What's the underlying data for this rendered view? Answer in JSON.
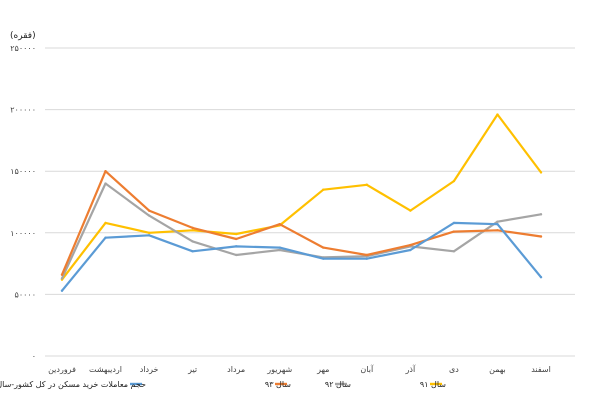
{
  "chart_data": {
    "type": "line",
    "unit_label": "(فقره)",
    "categories": [
      "فروردین",
      "اردیبهشت",
      "خرداد",
      "تیر",
      "مرداد",
      "شهریور",
      "مهر",
      "آبان",
      "آذر",
      "دی",
      "بهمن",
      "اسفند"
    ],
    "y_ticks": [
      0,
      50000,
      100000,
      150000,
      200000,
      250000
    ],
    "y_tick_labels": [
      "۰",
      "۵۰۰۰۰",
      "۱۰۰۰۰۰",
      "۱۵۰۰۰۰",
      "۲۰۰۰۰۰",
      "۲۵۰۰۰۰"
    ],
    "ylim": [
      0,
      250000
    ],
    "grid": "horizontal",
    "legend_position": "bottom",
    "series": [
      {
        "name": "سال ۹۱",
        "color": "#FFC000",
        "values": [
          62000,
          108000,
          100000,
          102000,
          99000,
          106000,
          135000,
          139000,
          118000,
          142000,
          196000,
          149000
        ]
      },
      {
        "name": "سال ۹۲",
        "color": "#A5A5A5",
        "values": [
          63000,
          140000,
          114000,
          93000,
          82000,
          86000,
          80000,
          81000,
          89000,
          85000,
          109000,
          115000
        ]
      },
      {
        "name": "سال ۹۳",
        "color": "#ED7D31",
        "values": [
          66000,
          150000,
          118000,
          104000,
          95000,
          107000,
          88000,
          82000,
          90000,
          101000,
          102000,
          97000
        ]
      },
      {
        "name": "حجم معاملات خرید مسکن در کل کشور-سال ۹۴",
        "color": "#5B9BD5",
        "values": [
          53000,
          96000,
          98000,
          85000,
          89000,
          88000,
          79000,
          79000,
          86000,
          108000,
          107000,
          64000
        ]
      }
    ]
  }
}
